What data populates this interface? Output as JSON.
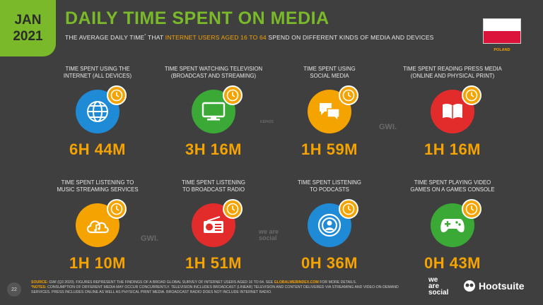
{
  "header": {
    "month": "JAN",
    "year": "2021",
    "title": "DAILY TIME SPENT ON MEDIA",
    "subtitle_pre": "THE AVERAGE DAILY TIME",
    "subtitle_sup": "*",
    "subtitle_mid": "THAT",
    "subtitle_highlight": "INTERNET USERS AGED 16 TO 64",
    "subtitle_post": "SPEND ON DIFFERENT KINDS OF MEDIA AND DEVICES",
    "country": "POLAND"
  },
  "colors": {
    "accent_green": "#7ab929",
    "accent_orange": "#f5a300",
    "background": "#3f3f3f"
  },
  "cards": [
    {
      "label_line1": "TIME SPENT USING THE",
      "label_line2": "INTERNET (ALL DEVICES)",
      "value": "6H 44M",
      "icon": "globe-icon",
      "color": "#1f8ad6"
    },
    {
      "label_line1": "TIME SPENT WATCHING TELEVISION",
      "label_line2": "(BROADCAST AND STREAMING)",
      "value": "3H 16M",
      "icon": "tv-icon",
      "color": "#3aa935"
    },
    {
      "label_line1": "TIME SPENT USING",
      "label_line2": "SOCIAL MEDIA",
      "value": "1H 59M",
      "icon": "chat-bubbles-icon",
      "color": "#f5a300"
    },
    {
      "label_line1": "TIME SPENT READING PRESS MEDIA",
      "label_line2": "(ONLINE AND PHYSICAL PRINT)",
      "value": "1H 16M",
      "icon": "book-icon",
      "color": "#e22b2b"
    },
    {
      "label_line1": "TIME SPENT LISTENING TO",
      "label_line2": "MUSIC STREAMING SERVICES",
      "value": "1H 10M",
      "icon": "cloud-music-icon",
      "color": "#f5a300"
    },
    {
      "label_line1": "TIME SPENT LISTENING",
      "label_line2": "TO BROADCAST RADIO",
      "value": "1H 51M",
      "icon": "radio-icon",
      "color": "#e22b2b"
    },
    {
      "label_line1": "TIME SPENT LISTENING",
      "label_line2": "TO PODCASTS",
      "value": "0H 36M",
      "icon": "podcast-icon",
      "color": "#1f8ad6"
    },
    {
      "label_line1": "TIME SPENT PLAYING VIDEO",
      "label_line2": "GAMES ON A GAMES CONSOLE",
      "value": "0H 43M",
      "icon": "gamepad-icon",
      "color": "#3aa935"
    }
  ],
  "watermarks": {
    "gwi": "GWI.",
    "was": "we are social",
    "kepios": "KEPIOS"
  },
  "footer": {
    "page_number": "22",
    "source_key": "SOURCE:",
    "source_text": "GWI (Q3 2020). FIGURES REPRESENT THE FINDINGS OF A BROAD GLOBAL SURVEY OF INTERNET USERS AGED 16 TO 64. SEE",
    "source_link": "GLOBALWEBINDEX.COM",
    "source_end": "FOR MORE DETAILS.",
    "notes_key": "*NOTES:",
    "notes_text": "CONSUMPTION OF DIFFERENT MEDIA MAY OCCUR CONCURRENTLY. TELEVISION INCLUDES BROADCAST (LINEAR) TELEVISION AND CONTENT DELIVERED VIA STREAMING AND VIDEO-ON-DEMAND SERVICES. PRESS INCLUDES ONLINE AS WELL AS PHYSICAL PRINT MEDIA. BROADCAST RADIO DOES NOT INCLUDE INTERNET RADIO.",
    "logo_we": "we",
    "logo_are": "are",
    "logo_social": "social",
    "hootsuite": "Hootsuite"
  }
}
